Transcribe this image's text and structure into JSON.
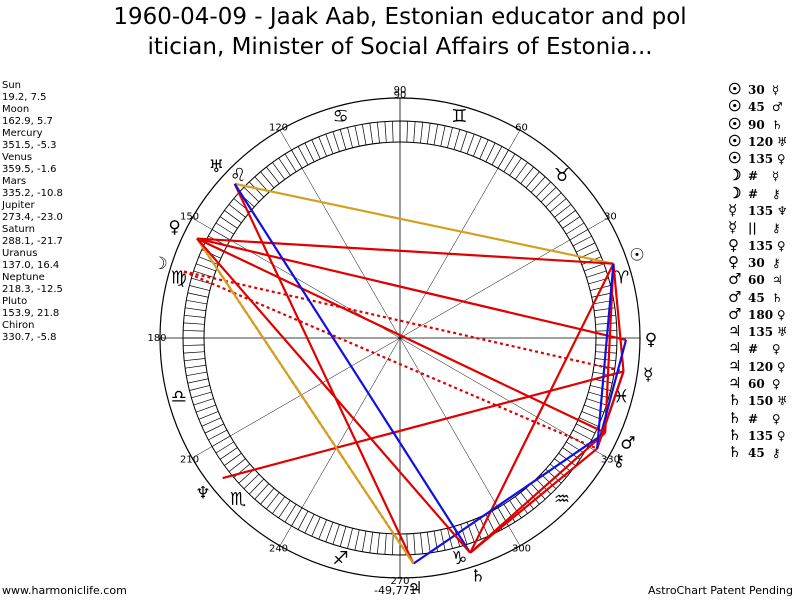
{
  "title": {
    "line1": "1960-04-09 - Jaak Aab, Estonian educator and pol",
    "line2": "itician, Minister of Social Affairs of Estonia..."
  },
  "planet_positions": [
    {
      "name": "Sun",
      "value": "19.2, 7.5"
    },
    {
      "name": "Moon",
      "value": "162.9, 5.7"
    },
    {
      "name": "Mercury",
      "value": "351.5, -5.3"
    },
    {
      "name": "Venus",
      "value": "359.5, -1.6"
    },
    {
      "name": "Mars",
      "value": "335.2, -10.8"
    },
    {
      "name": "Jupiter",
      "value": "273.4, -23.0"
    },
    {
      "name": "Saturn",
      "value": "288.1, -21.7"
    },
    {
      "name": "Uranus",
      "value": "137.0, 16.4"
    },
    {
      "name": "Neptune",
      "value": "218.3, -12.5"
    },
    {
      "name": "Pluto",
      "value": "153.9, 21.8"
    },
    {
      "name": "Chiron",
      "value": "330.7, -5.8"
    }
  ],
  "aspect_list": [
    {
      "p1": "☉",
      "aspect": "30",
      "p2": "☿"
    },
    {
      "p1": "☉",
      "aspect": "45",
      "p2": "♂"
    },
    {
      "p1": "☉",
      "aspect": "90",
      "p2": "♄"
    },
    {
      "p1": "☉",
      "aspect": "120",
      "p2": "♅"
    },
    {
      "p1": "☉",
      "aspect": "135",
      "p2": "♀"
    },
    {
      "p1": "☽",
      "aspect": "#",
      "p2": "☿"
    },
    {
      "p1": "☽",
      "aspect": "#",
      "p2": "⚷"
    },
    {
      "p1": "☿",
      "aspect": "135",
      "p2": "♆"
    },
    {
      "p1": "☿",
      "aspect": "||",
      "p2": "⚷"
    },
    {
      "p1": "♀",
      "aspect": "135",
      "p2": "♀"
    },
    {
      "p1": "♀",
      "aspect": "30",
      "p2": "⚷"
    },
    {
      "p1": "♂",
      "aspect": "60",
      "p2": "♃"
    },
    {
      "p1": "♂",
      "aspect": "45",
      "p2": "♄"
    },
    {
      "p1": "♂",
      "aspect": "180",
      "p2": "♀"
    },
    {
      "p1": "♃",
      "aspect": "135",
      "p2": "♅"
    },
    {
      "p1": "♃",
      "aspect": "#",
      "p2": "♀"
    },
    {
      "p1": "♃",
      "aspect": "120",
      "p2": "♀"
    },
    {
      "p1": "♃",
      "aspect": "60",
      "p2": "♀"
    },
    {
      "p1": "♄",
      "aspect": "150",
      "p2": "♅"
    },
    {
      "p1": "♄",
      "aspect": "#",
      "p2": "♀"
    },
    {
      "p1": "♄",
      "aspect": "135",
      "p2": "♀"
    },
    {
      "p1": "♄",
      "aspect": "45",
      "p2": "⚷"
    }
  ],
  "wheel": {
    "degree_labels": [
      "30",
      "60",
      "90",
      "120",
      "150",
      "180",
      "210",
      "240",
      "270",
      "300",
      "330"
    ],
    "zodiac_glyphs": [
      "♈",
      "♉",
      "♊",
      "♋",
      "♌",
      "♍",
      "♎",
      "♏",
      "♐",
      "♑",
      "♒",
      "♓"
    ],
    "planets": [
      {
        "glyph": "☉",
        "longitude": 19.2
      },
      {
        "glyph": "☽",
        "longitude": 162.9
      },
      {
        "glyph": "☿",
        "longitude": 351.5
      },
      {
        "glyph": "♀",
        "longitude": 359.5
      },
      {
        "glyph": "♂",
        "longitude": 335.2
      },
      {
        "glyph": "♃",
        "longitude": 273.4
      },
      {
        "glyph": "♄",
        "longitude": 288.1
      },
      {
        "glyph": "♅",
        "longitude": 137.0
      },
      {
        "glyph": "♆",
        "longitude": 218.3
      },
      {
        "glyph": "♀",
        "longitude": 153.9
      },
      {
        "glyph": "⚷",
        "longitude": 330.7
      }
    ],
    "aspect_lines": [
      {
        "from": 19.2,
        "to": 351.5,
        "color": "#e00000",
        "style": "solid"
      },
      {
        "from": 19.2,
        "to": 335.2,
        "color": "#e00000",
        "style": "solid"
      },
      {
        "from": 19.2,
        "to": 288.1,
        "color": "#e00000",
        "style": "solid"
      },
      {
        "from": 19.2,
        "to": 137.0,
        "color": "#d4a020",
        "style": "solid"
      },
      {
        "from": 19.2,
        "to": 153.9,
        "color": "#e00000",
        "style": "solid"
      },
      {
        "from": 162.9,
        "to": 351.5,
        "color": "#e00000",
        "style": "dotted"
      },
      {
        "from": 162.9,
        "to": 330.7,
        "color": "#e00000",
        "style": "dotted"
      },
      {
        "from": 351.5,
        "to": 218.3,
        "color": "#e00000",
        "style": "solid"
      },
      {
        "from": 351.5,
        "to": 330.7,
        "color": "#1010e0",
        "style": "solid"
      },
      {
        "from": 359.5,
        "to": 153.9,
        "color": "#e00000",
        "style": "solid"
      },
      {
        "from": 359.5,
        "to": 330.7,
        "color": "#1010e0",
        "style": "solid"
      },
      {
        "from": 335.2,
        "to": 273.4,
        "color": "#1010e0",
        "style": "solid"
      },
      {
        "from": 335.2,
        "to": 288.1,
        "color": "#e00000",
        "style": "solid"
      },
      {
        "from": 335.2,
        "to": 153.9,
        "color": "#e00000",
        "style": "solid"
      },
      {
        "from": 273.4,
        "to": 137.0,
        "color": "#e00000",
        "style": "solid"
      },
      {
        "from": 273.4,
        "to": 153.9,
        "color": "#e00000",
        "style": "dotted"
      },
      {
        "from": 273.4,
        "to": 153.9,
        "color": "#d4a020",
        "style": "solid"
      },
      {
        "from": 288.1,
        "to": 137.0,
        "color": "#1010e0",
        "style": "solid"
      },
      {
        "from": 288.1,
        "to": 153.9,
        "color": "#e00000",
        "style": "solid"
      },
      {
        "from": 288.1,
        "to": 330.7,
        "color": "#e00000",
        "style": "solid"
      },
      {
        "from": 330.7,
        "to": 351.5,
        "color": "#e00000",
        "style": "solid"
      },
      {
        "from": 19.2,
        "to": 330.7,
        "color": "#1010e0",
        "style": "solid"
      }
    ]
  },
  "footer": {
    "left": "www.harmoniclife.com",
    "center": "-49,771",
    "right": "AstroChart Patent Pending"
  }
}
